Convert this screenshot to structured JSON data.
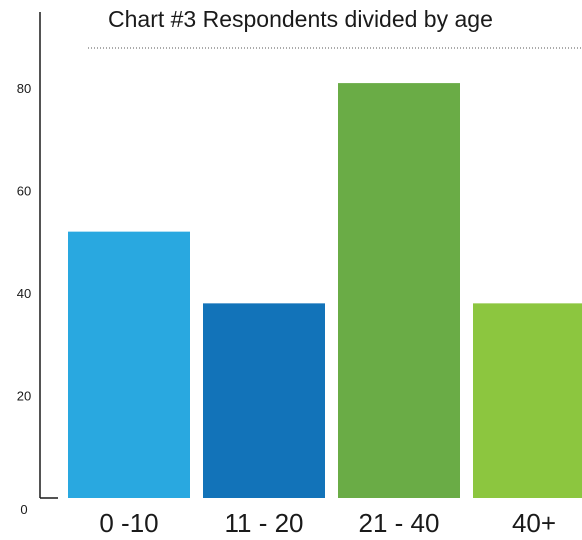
{
  "chart_data": {
    "type": "bar",
    "title": "Chart #3 Respondents divided by age",
    "categories": [
      "0 -10",
      "11 - 20",
      "21 - 40",
      "40+"
    ],
    "values": [
      52,
      38,
      81,
      38
    ],
    "colors": [
      "#29a8e0",
      "#1273b9",
      "#6aac46",
      "#8cc63f"
    ],
    "ylim": [
      0,
      90
    ],
    "yticks": [
      0,
      20,
      40,
      60,
      80
    ],
    "xlabel": "",
    "ylabel": ""
  }
}
